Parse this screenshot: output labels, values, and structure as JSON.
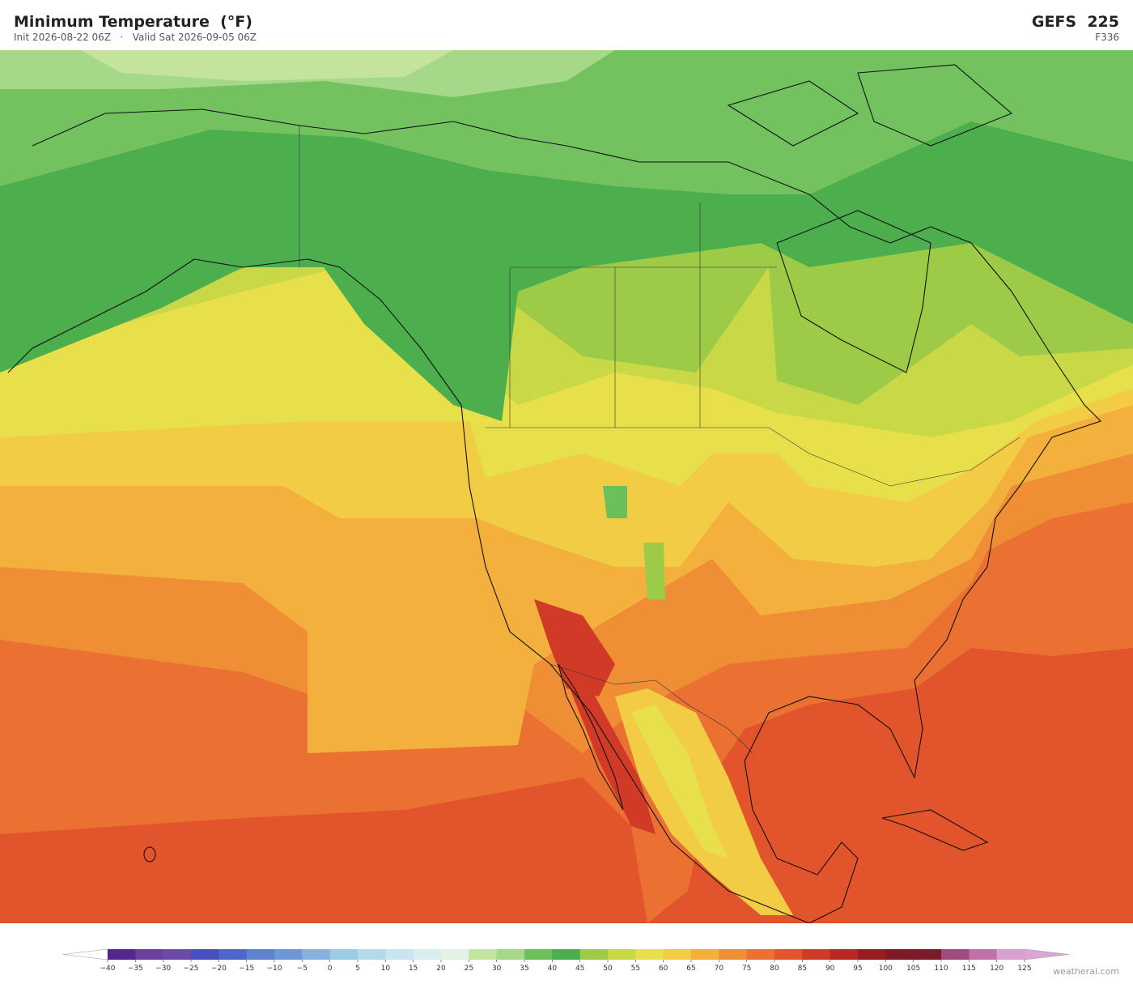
{
  "header": {
    "title": "Minimum Temperature  (°F)",
    "subtitle": "Init 2026-08-22 06Z   ·   Valid Sat 2026-09-05 06Z",
    "model": "GEFS  225",
    "forecast_hour": "F336"
  },
  "colorbar": {
    "ticks": [
      {
        "value": -40,
        "label": "−40"
      },
      {
        "value": -35,
        "label": "−35"
      },
      {
        "value": -30,
        "label": "−30"
      },
      {
        "value": -25,
        "label": "−25"
      },
      {
        "value": -20,
        "label": "−20"
      },
      {
        "value": -15,
        "label": "−15"
      },
      {
        "value": -10,
        "label": "−10"
      },
      {
        "value": -5,
        "label": "−5"
      },
      0,
      5,
      10,
      15,
      20,
      25,
      30,
      35,
      40,
      45,
      50,
      55,
      60,
      65,
      70,
      75,
      80,
      85,
      90,
      95,
      100,
      105,
      110,
      115,
      120,
      125
    ],
    "colors": [
      "#54268f",
      "#6a3f9e",
      "#6b4aa8",
      "#4a4fbf",
      "#4e66c8",
      "#5f82cf",
      "#6f96d6",
      "#86b0de",
      "#9ccbe6",
      "#b2daeb",
      "#c9e6ef",
      "#daeef0",
      "#e4f2e6",
      "#c3e39e",
      "#a6d88a",
      "#6cbf5a",
      "#4cae4c",
      "#9dcb47",
      "#c8d846",
      "#e8e04a",
      "#f2cc44",
      "#f3b03c",
      "#ef8e35",
      "#ea7131",
      "#e2542b",
      "#d13a26",
      "#b82822",
      "#961c1f",
      "#7d1a25",
      "#7a1a2a",
      "#a04a7e",
      "#c072a8",
      "#d9a0d0"
    ],
    "under_color": "#ffffff",
    "over_color": "#dba6d3"
  },
  "footer": {
    "credit": "weatherai.com"
  }
}
